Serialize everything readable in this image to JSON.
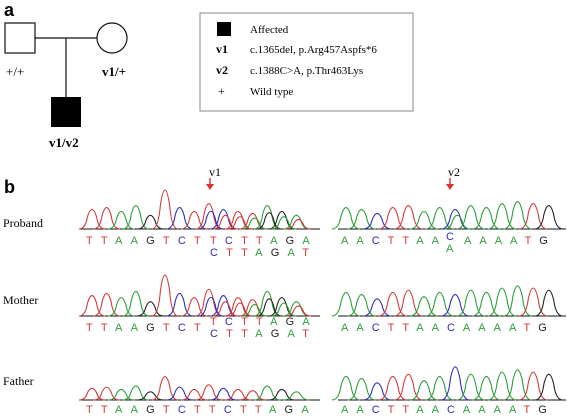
{
  "panel_a": {
    "label": "a",
    "father_genotype": "+/+",
    "mother_genotype": "v1/+",
    "child_genotype": "v1/v2"
  },
  "legend": {
    "affected_label": "Affected",
    "v1_key": "v1",
    "v1_desc": "c.1365del, p.Arg457Aspfs*6",
    "v2_key": "v2",
    "v2_desc": "c.1388C>A, p.Thr463Lys",
    "wt_key": "+",
    "wt_desc": "Wild type"
  },
  "panel_b": {
    "label": "b",
    "marker_v1": "v1",
    "marker_v2": "v2",
    "rows": [
      {
        "name": "Proband",
        "left_seq": "TTAAGTCT",
        "left_top": "TCTTAGA",
        "left_bottom": "CTTAGAT",
        "right_seq": "AACTTAA",
        "right_het_top": "C",
        "right_het_bottom": "A",
        "right_tail": "AAAATG"
      },
      {
        "name": "Mother",
        "left_seq": "TTAAGTCT",
        "left_top": "TCTTAGA",
        "left_bottom": "CTTAGAT",
        "right_seq": "AACTTAACAAAATG"
      },
      {
        "name": "Father",
        "left_seq": "TTAAGTCTTCTTAGA",
        "right_seq": "AACTTAACAAAATG"
      }
    ]
  },
  "colors": {
    "A": "#2e9d3a",
    "C": "#2d2db8",
    "G": "#222222",
    "T": "#d13a3a",
    "arrow": "#e03030",
    "affected": "#000000"
  }
}
